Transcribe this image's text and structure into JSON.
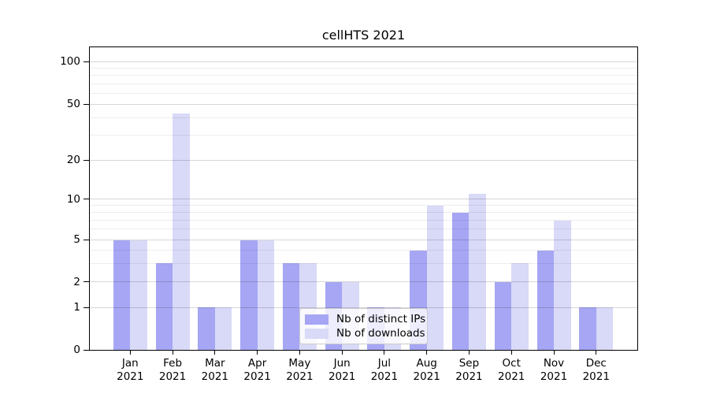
{
  "title": "cellHTS 2021",
  "chart_data": {
    "type": "bar",
    "title": "cellHTS 2021",
    "xlabel": "",
    "ylabel": "",
    "months": [
      "Jan",
      "Feb",
      "Mar",
      "Apr",
      "May",
      "Jun",
      "Jul",
      "Aug",
      "Sep",
      "Oct",
      "Nov",
      "Dec"
    ],
    "year": "2021",
    "series": [
      {
        "name": "Nb of distinct IPs",
        "color": "#a6a6f4",
        "values": [
          5,
          3,
          1,
          5,
          3,
          2,
          1,
          4,
          8,
          2,
          4,
          1
        ]
      },
      {
        "name": "Nb of downloads",
        "color": "#d9d9f8",
        "values": [
          5,
          43,
          1,
          5,
          3,
          2,
          1,
          9,
          11,
          3,
          7,
          1
        ]
      }
    ],
    "y_major_ticks": [
      0,
      1,
      2,
      5,
      10,
      20,
      50,
      100
    ],
    "y_minor_ticks": [
      3,
      4,
      6,
      7,
      8,
      9,
      30,
      40,
      60,
      70,
      80,
      90
    ],
    "yscale": "log-like (custom ticks 0,1,2,5,10,20,50,100)",
    "ylim": [
      0,
      127
    ],
    "grid": true,
    "legend_position": "lower center",
    "colors": {
      "axis": "#000000",
      "grid_major": "#d6d6d6",
      "grid_minor": "#ededed"
    }
  }
}
